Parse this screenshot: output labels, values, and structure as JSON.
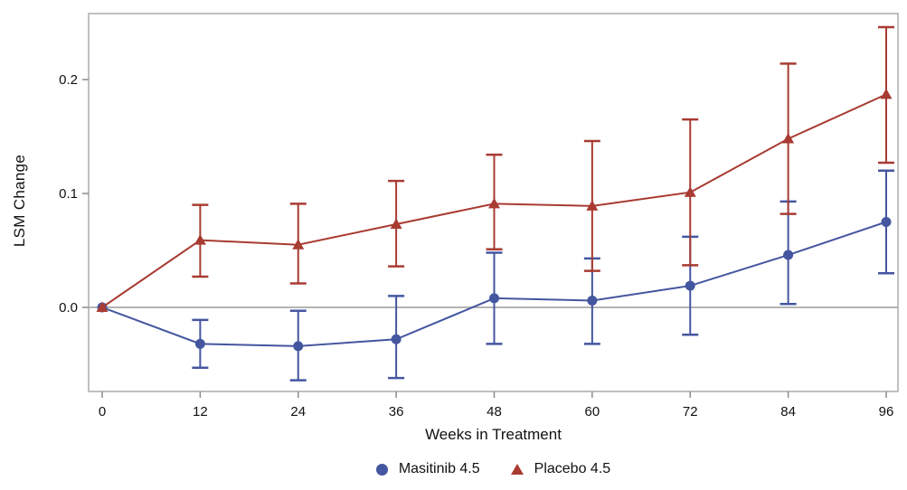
{
  "chart_data": {
    "type": "line",
    "title": "",
    "xlabel": "Weeks in Treatment",
    "ylabel": "LSM Change",
    "x": [
      0,
      12,
      24,
      36,
      48,
      60,
      72,
      84,
      96
    ],
    "x_ticks": [
      "0",
      "12",
      "24",
      "36",
      "48",
      "60",
      "72",
      "84",
      "96"
    ],
    "y_ticks": [
      0.0,
      0.1,
      0.2
    ],
    "y_tick_labels": [
      "0.0",
      "0.1",
      "0.2"
    ],
    "ylim": [
      -0.074,
      0.258
    ],
    "xlim": [
      -1.7,
      97.5
    ],
    "zero_reference_line": 0.0,
    "grid": false,
    "error_bars": true,
    "legend_position": "bottom-center",
    "colors": {
      "frame": "#b9babc",
      "zero_line": "#a9a9a9",
      "tick": "#8c8c8c",
      "text": "#111111"
    },
    "series": [
      {
        "name": "Masitinib 4.5",
        "marker": "circle",
        "color": "#4456A0",
        "values": [
          0.0,
          -0.032,
          -0.034,
          -0.028,
          0.008,
          0.006,
          0.019,
          0.046,
          0.075
        ],
        "ci_lower": [
          0.0,
          -0.053,
          -0.064,
          -0.062,
          -0.032,
          -0.032,
          -0.024,
          0.003,
          0.03
        ],
        "ci_upper": [
          0.0,
          -0.011,
          -0.003,
          0.01,
          0.048,
          0.043,
          0.062,
          0.093,
          0.12
        ]
      },
      {
        "name": "Placebo 4.5",
        "marker": "triangle",
        "color": "#A83B32",
        "values": [
          0.0,
          0.059,
          0.055,
          0.073,
          0.091,
          0.089,
          0.101,
          0.148,
          0.187
        ],
        "ci_lower": [
          0.0,
          0.027,
          0.021,
          0.036,
          0.051,
          0.032,
          0.037,
          0.082,
          0.127
        ],
        "ci_upper": [
          0.0,
          0.09,
          0.091,
          0.111,
          0.134,
          0.146,
          0.165,
          0.214,
          0.246
        ]
      }
    ]
  }
}
